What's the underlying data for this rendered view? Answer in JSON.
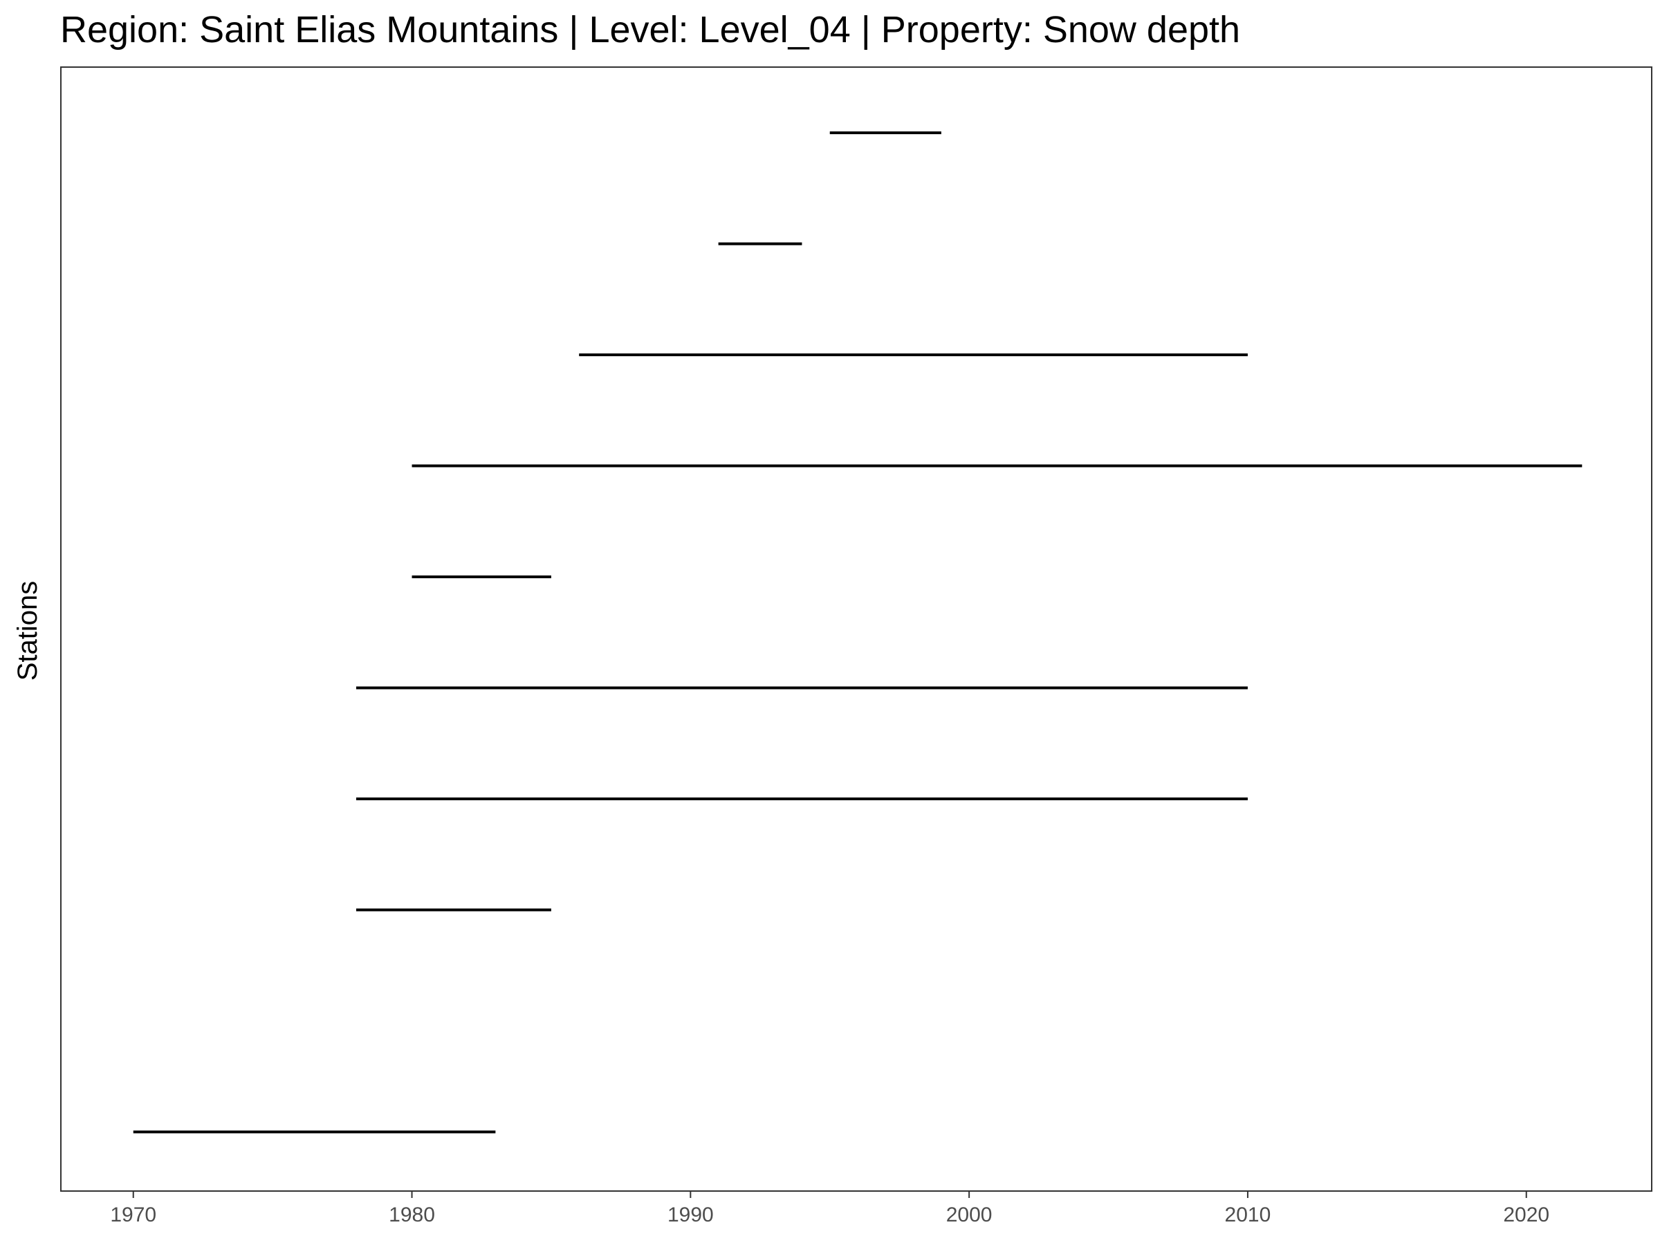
{
  "chart_data": {
    "type": "timeline",
    "title": "Region: Saint Elias Mountains | Level: Level_04 | Property: Snow depth",
    "xlabel": "",
    "ylabel": "Stations",
    "xlim": [
      1967.4,
      2024.5
    ],
    "x_ticks": [
      1970,
      1980,
      1990,
      2000,
      2010,
      2020
    ],
    "grid": false,
    "legend": "none",
    "segments": [
      {
        "start": 1995,
        "end": 1999
      },
      {
        "start": 1991,
        "end": 1994
      },
      {
        "start": 1986,
        "end": 2010
      },
      {
        "start": 1980,
        "end": 2022
      },
      {
        "start": 1980,
        "end": 1985
      },
      {
        "start": 1978,
        "end": 2010
      },
      {
        "start": 1978,
        "end": 2010
      },
      {
        "start": 1978,
        "end": 1985
      },
      {
        "start": 1970,
        "end": 1983
      }
    ],
    "segment_rows": [
      1,
      2,
      3,
      4,
      5,
      6,
      7,
      8,
      10
    ],
    "row_count": 10,
    "colors": {
      "line": "#000000",
      "panel_border": "#333333",
      "tick_text": "#4d4d4d",
      "background": "#ffffff"
    }
  }
}
